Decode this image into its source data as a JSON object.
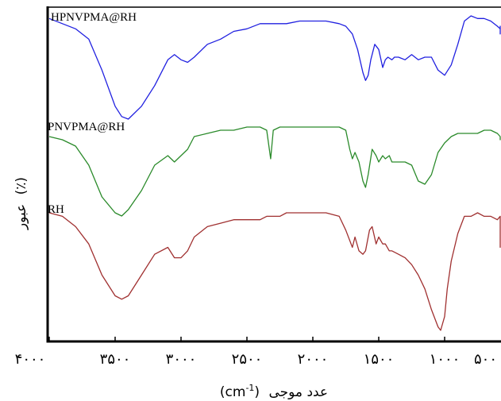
{
  "chart_data": {
    "type": "line",
    "xlabel": "عدد موجی (cm-1)",
    "ylabel": "عبور (٪)",
    "x_reversed": true,
    "xlim": [
      4000,
      400
    ],
    "ylim": [
      0,
      100
    ],
    "grid": false,
    "legend": "none",
    "x_ticks": [
      {
        "value": 4000,
        "label": "۴۰۰۰"
      },
      {
        "value": 3500,
        "label": "۳۵۰۰"
      },
      {
        "value": 3000,
        "label": "۳۰۰۰"
      },
      {
        "value": 2500,
        "label": "۲۵۰۰"
      },
      {
        "value": 2000,
        "label": "۲۰۰۰"
      },
      {
        "value": 1500,
        "label": "۱۵۰۰"
      },
      {
        "value": 1000,
        "label": "۱۰۰۰"
      },
      {
        "value": 500,
        "label": "۵۰۰"
      }
    ],
    "series": [
      {
        "name": "HPNVPMA@RH",
        "color": "#2020e0",
        "x": [
          4000,
          3900,
          3800,
          3700,
          3600,
          3500,
          3450,
          3400,
          3300,
          3200,
          3100,
          3050,
          3000,
          2950,
          2900,
          2800,
          2700,
          2600,
          2500,
          2400,
          2300,
          2200,
          2100,
          2000,
          1900,
          1800,
          1750,
          1700,
          1660,
          1620,
          1600,
          1580,
          1560,
          1530,
          1500,
          1470,
          1450,
          1430,
          1400,
          1380,
          1350,
          1300,
          1250,
          1200,
          1150,
          1100,
          1050,
          1000,
          950,
          900,
          850,
          800,
          750,
          700,
          650,
          600,
          560,
          520,
          480,
          450,
          420,
          400
        ],
        "y": [
          96,
          94,
          92,
          88,
          76,
          62,
          58,
          57,
          62,
          70,
          80,
          82,
          80,
          79,
          81,
          86,
          88,
          91,
          92,
          94,
          94,
          94,
          95,
          95,
          95,
          94,
          93,
          90,
          84,
          75,
          72,
          74,
          80,
          86,
          84,
          77,
          80,
          81,
          80,
          81,
          81,
          80,
          82,
          80,
          81,
          81,
          76,
          74,
          78,
          86,
          95,
          97,
          96,
          96,
          95,
          93,
          92,
          93,
          90,
          91,
          93,
          93
        ],
        "label_text": "HPNVPMA@RH"
      },
      {
        "name": "PNVPMA@RH",
        "color": "#2a8a2a",
        "x": [
          4000,
          3900,
          3800,
          3700,
          3600,
          3500,
          3450,
          3400,
          3300,
          3200,
          3100,
          3050,
          3000,
          2950,
          2900,
          2800,
          2700,
          2600,
          2500,
          2400,
          2350,
          2320,
          2300,
          2250,
          2200,
          2100,
          2000,
          1900,
          1800,
          1750,
          1720,
          1700,
          1680,
          1650,
          1620,
          1600,
          1580,
          1550,
          1520,
          1500,
          1470,
          1450,
          1420,
          1400,
          1350,
          1300,
          1250,
          1200,
          1150,
          1100,
          1050,
          1000,
          950,
          900,
          850,
          800,
          750,
          700,
          650,
          600,
          550,
          500,
          450,
          420,
          400
        ],
        "y": [
          64,
          63,
          61,
          55,
          45,
          40,
          39,
          41,
          47,
          55,
          58,
          56,
          58,
          60,
          64,
          65,
          66,
          66,
          67,
          67,
          66,
          57,
          66,
          67,
          67,
          67,
          67,
          67,
          67,
          66,
          60,
          57,
          59,
          56,
          50,
          48,
          52,
          60,
          58,
          56,
          58,
          57,
          58,
          56,
          56,
          56,
          55,
          50,
          49,
          52,
          59,
          62,
          64,
          65,
          65,
          65,
          65,
          66,
          66,
          65,
          64,
          64,
          64,
          63,
          64
        ]
      },
      {
        "name": "RH",
        "color": "#a03030",
        "x": [
          4000,
          3900,
          3800,
          3700,
          3600,
          3500,
          3450,
          3400,
          3300,
          3200,
          3100,
          3050,
          3000,
          2950,
          2900,
          2800,
          2700,
          2600,
          2500,
          2400,
          2350,
          2300,
          2250,
          2200,
          2100,
          2000,
          1900,
          1800,
          1750,
          1700,
          1680,
          1650,
          1620,
          1600,
          1570,
          1550,
          1520,
          1500,
          1470,
          1450,
          1420,
          1400,
          1350,
          1300,
          1250,
          1200,
          1150,
          1100,
          1050,
          1030,
          1000,
          980,
          950,
          900,
          850,
          800,
          750,
          700,
          650,
          600,
          550,
          500,
          470,
          450,
          420,
          400
        ],
        "y": [
          38,
          37,
          34,
          29,
          20,
          14,
          13,
          14,
          20,
          26,
          28,
          25,
          25,
          27,
          31,
          34,
          35,
          36,
          36,
          36,
          37,
          37,
          37,
          38,
          38,
          38,
          38,
          37,
          33,
          28,
          31,
          27,
          26,
          27,
          33,
          34,
          29,
          31,
          29,
          29,
          27,
          27,
          26,
          25,
          23,
          20,
          16,
          10,
          5,
          4,
          8,
          16,
          24,
          32,
          37,
          37,
          38,
          37,
          37,
          36,
          37,
          36,
          30,
          29,
          28,
          33
        ]
      }
    ],
    "annotations": [
      "HPNVPMA@RH",
      "PNVPMA@RH",
      "RH"
    ]
  },
  "ylabel_parts": {
    "word": "عبور",
    "unit": "(٪)"
  },
  "xlabel_parts": {
    "word": "عدد موجی",
    "unit": "(cm",
    "sup": "-1",
    "close": ")"
  }
}
